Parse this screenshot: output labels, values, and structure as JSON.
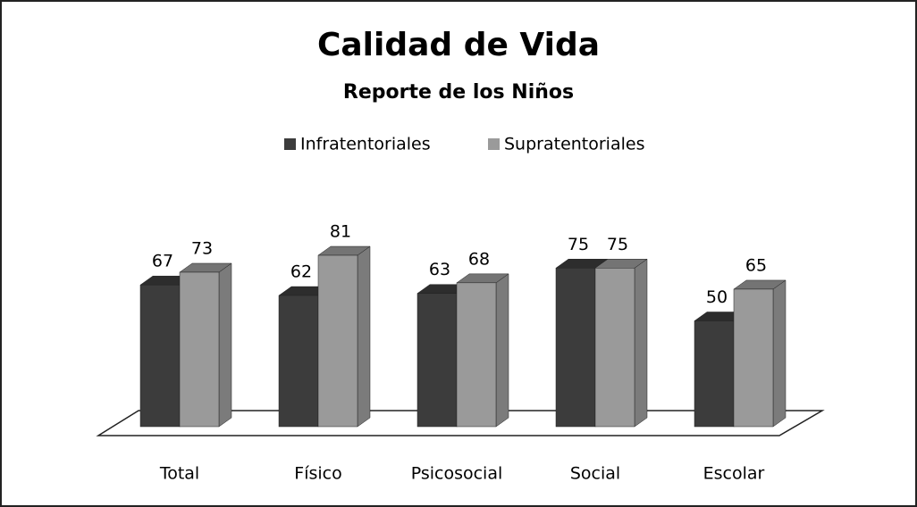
{
  "chart_data": {
    "type": "bar3d",
    "title": "Calidad de Vida",
    "subtitle": "Reporte de los Niños",
    "categories": [
      "Total",
      "Físico",
      "Psicosocial",
      "Social",
      "Escolar"
    ],
    "series": [
      {
        "name": "Infratentoriales",
        "color": "#3c3c3c",
        "values": [
          67,
          62,
          63,
          75,
          50
        ]
      },
      {
        "name": "Supratentoriales",
        "color": "#9a9a9a",
        "values": [
          73,
          81,
          68,
          75,
          65
        ]
      }
    ],
    "legend": "top"
  }
}
